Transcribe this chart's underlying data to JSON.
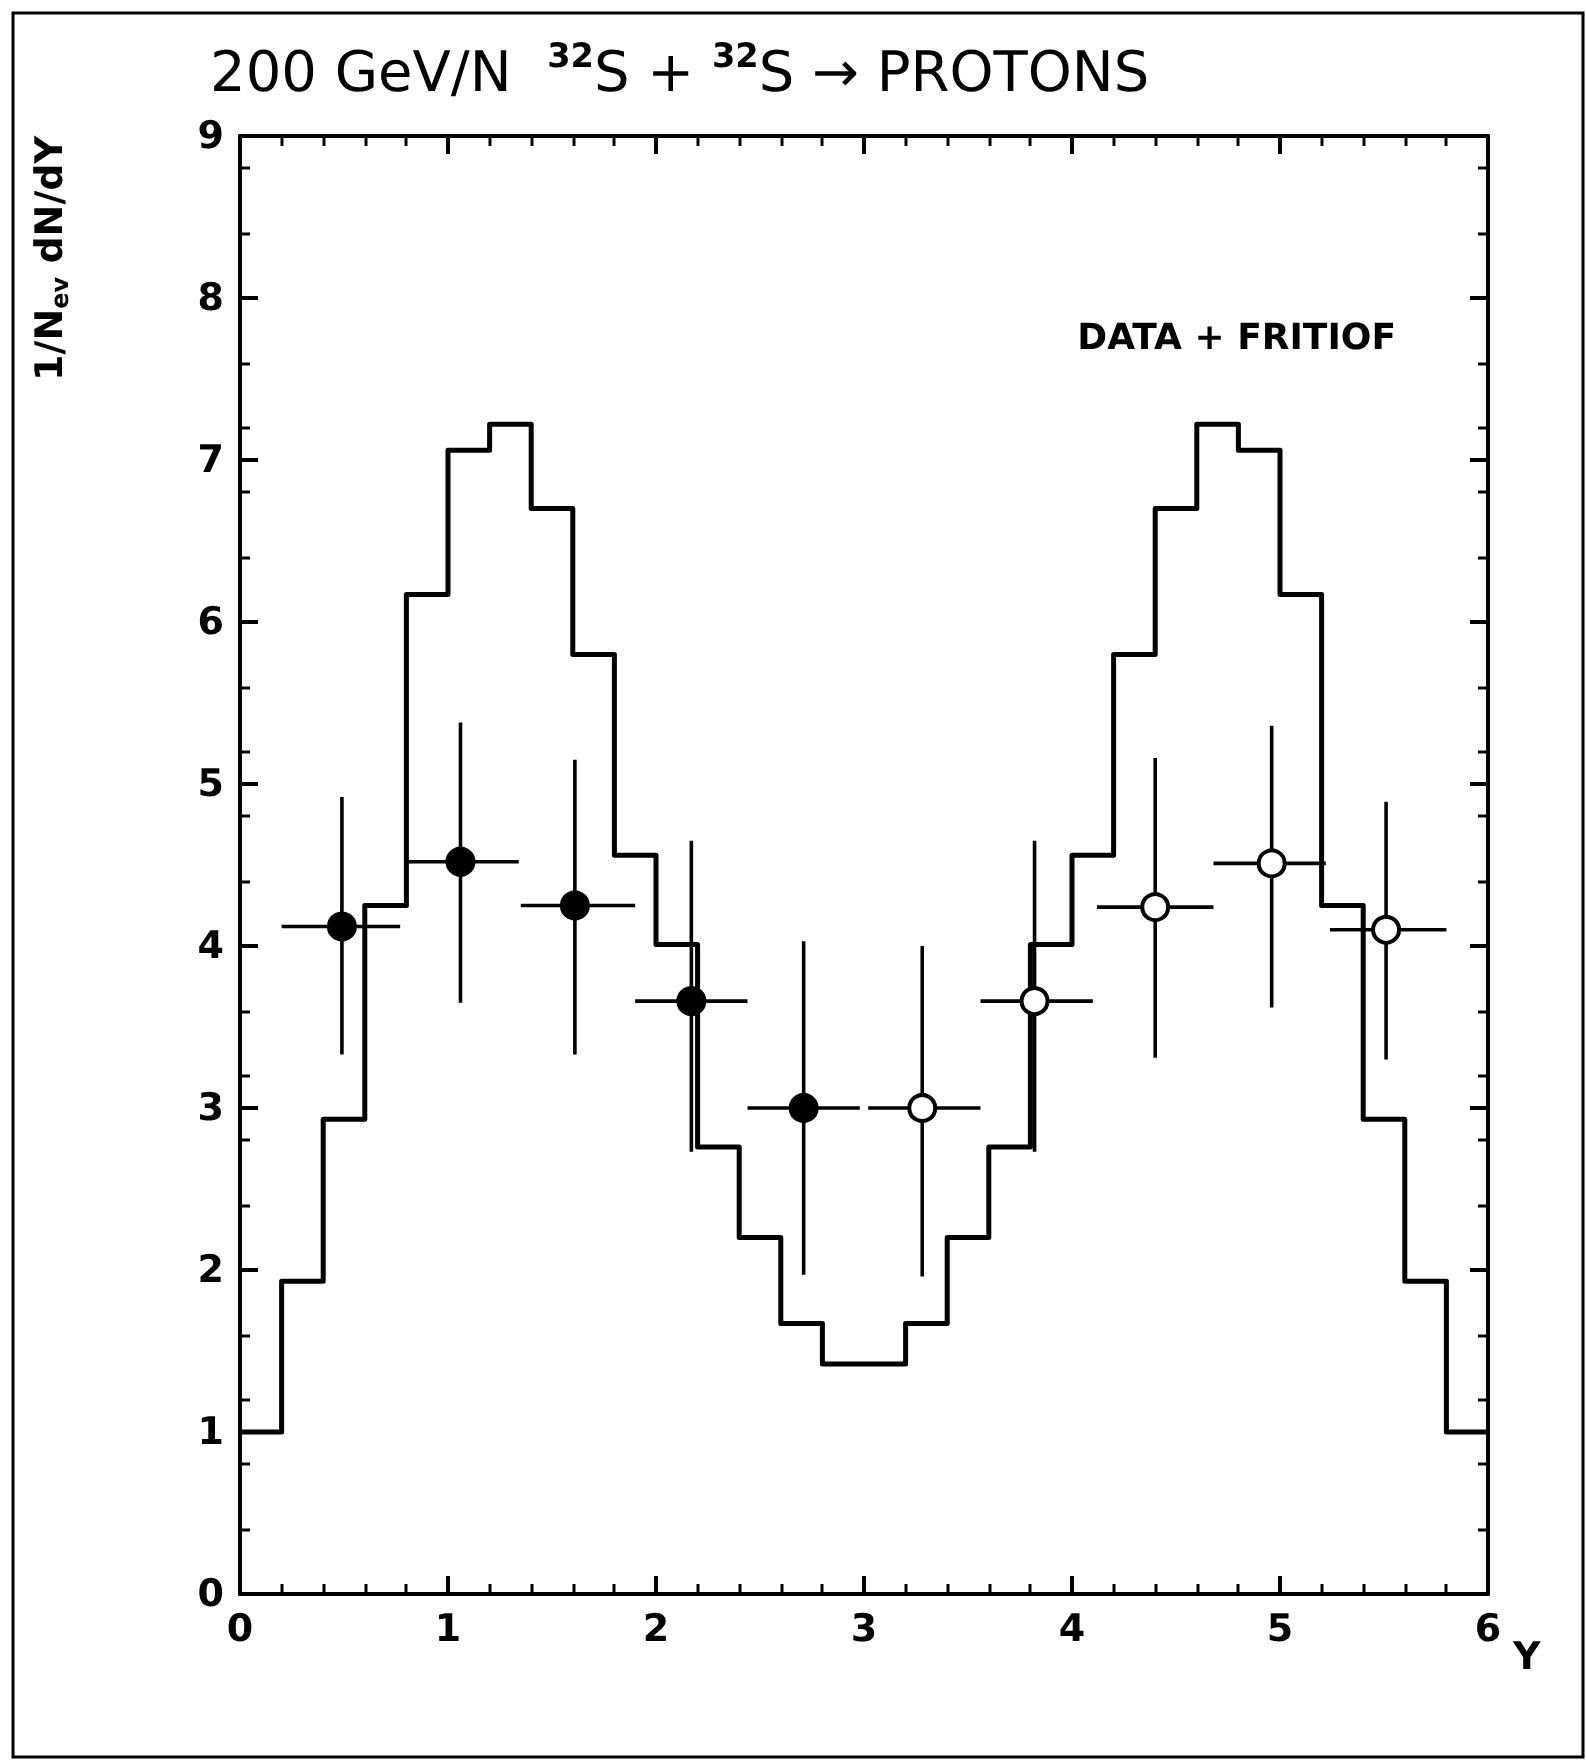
{
  "chart_data": {
    "type": "scatter",
    "title": "200 GeV/N  $^{32}$S + $^{32}$S → PROTONS",
    "xlabel": "Y",
    "ylabel": "1/N$_{ev}$ dN/dY",
    "annotations": [
      "DATA + FRITIOF"
    ],
    "xlim": [
      0,
      6
    ],
    "xticks": [
      0,
      1,
      2,
      3,
      4,
      5,
      6
    ],
    "ylim": [
      0,
      9
    ],
    "yticks": [
      0,
      1,
      2,
      3,
      4,
      5,
      6,
      7,
      8,
      9
    ],
    "grid": false,
    "series": [
      {
        "type": "histogram",
        "color": "#000000",
        "bins": [
          0,
          0.2,
          0.4,
          0.6,
          0.8,
          1.0,
          1.2,
          1.4,
          1.6,
          1.8,
          2.0,
          2.2,
          2.4,
          2.6,
          2.8,
          3.0,
          3.2,
          3.4,
          3.6,
          3.8,
          4.0,
          4.2,
          4.4,
          4.6,
          4.8,
          5.0,
          5.2,
          5.4,
          5.6,
          5.8,
          6.0
        ],
        "values": [
          1.0,
          1.93,
          2.93,
          4.25,
          6.17,
          7.06,
          7.22,
          6.7,
          5.8,
          4.56,
          4.01,
          2.76,
          2.2,
          1.67,
          1.42,
          1.42,
          1.67,
          2.2,
          2.76,
          4.01,
          4.56,
          5.8,
          6.7,
          7.22,
          7.06,
          6.17,
          4.25,
          2.93,
          1.93,
          1.0
        ]
      },
      {
        "color": "#000000",
        "marker": "circle",
        "x": [
          0.49,
          1.06,
          1.61,
          2.17,
          2.71
        ],
        "values": [
          4.12,
          4.52,
          4.25,
          3.66,
          3.0
        ],
        "errors": [
          [
            3.33,
            4.92
          ],
          [
            3.65,
            5.38
          ],
          [
            3.33,
            5.15
          ],
          [
            2.73,
            4.65
          ],
          [
            1.97,
            4.03
          ]
        ],
        "xerrors": [
          [
            0.2,
            0.77
          ],
          [
            0.79,
            1.34
          ],
          [
            1.35,
            1.9
          ],
          [
            1.9,
            2.44
          ],
          [
            2.44,
            2.98
          ]
        ]
      },
      {
        "color": "#ffffff",
        "marker": "circle",
        "x": [
          3.28,
          3.82,
          4.4,
          4.96,
          5.51
        ],
        "values": [
          3.0,
          3.66,
          4.24,
          4.51,
          4.1
        ],
        "errors": [
          [
            1.96,
            4.0
          ],
          [
            2.73,
            4.65
          ],
          [
            3.31,
            5.16
          ],
          [
            3.62,
            5.36
          ],
          [
            3.3,
            4.89
          ]
        ],
        "xerrors": [
          [
            3.02,
            3.56
          ],
          [
            3.56,
            4.1
          ],
          [
            4.12,
            4.68
          ],
          [
            4.68,
            5.22
          ],
          [
            5.24,
            5.8
          ]
        ]
      }
    ]
  }
}
